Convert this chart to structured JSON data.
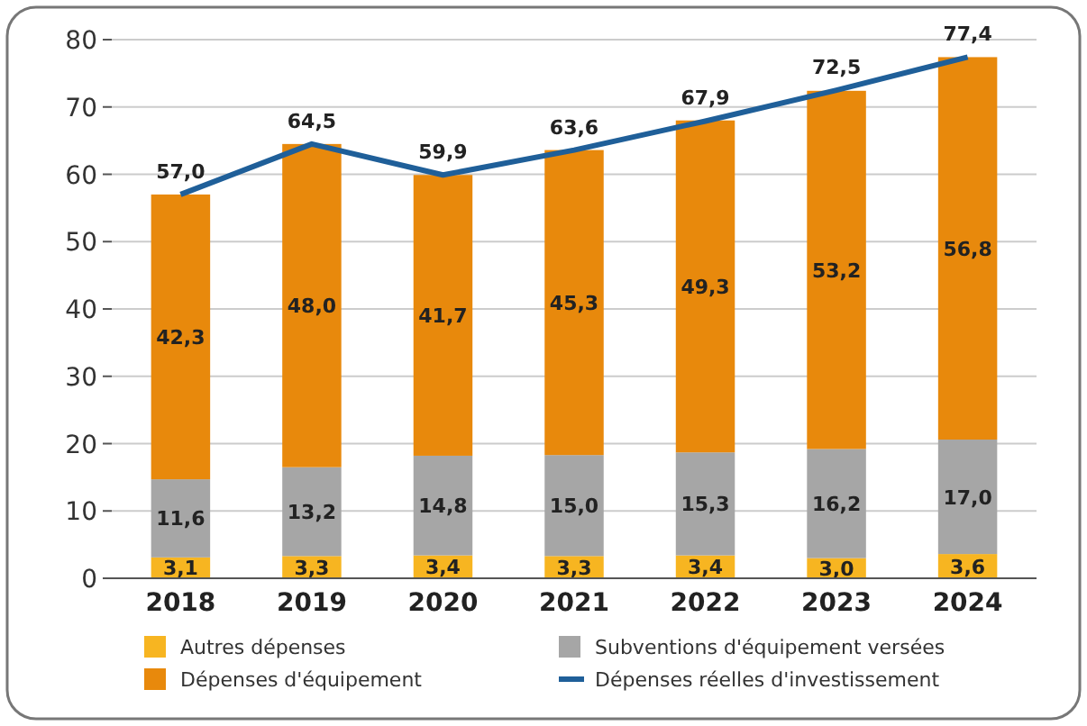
{
  "chart_data": {
    "type": "bar",
    "stacked": true,
    "categories": [
      "2018",
      "2019",
      "2020",
      "2021",
      "2022",
      "2023",
      "2024"
    ],
    "series": [
      {
        "name": "Autres dépenses",
        "color": "#f7b521",
        "values": [
          3.1,
          3.3,
          3.4,
          3.3,
          3.4,
          3.0,
          3.6
        ],
        "value_labels": [
          "3,1",
          "3,3",
          "3,4",
          "3,3",
          "3,4",
          "3,0",
          "3,6"
        ]
      },
      {
        "name": "Subventions d'équipement versées",
        "color": "#a6a6a6",
        "values": [
          11.6,
          13.2,
          14.8,
          15.0,
          15.3,
          16.2,
          17.0
        ],
        "value_labels": [
          "11,6",
          "13,2",
          "14,8",
          "15,0",
          "15,3",
          "16,2",
          "17,0"
        ]
      },
      {
        "name": "Dépenses d'équipement",
        "color": "#e8890c",
        "values": [
          42.3,
          48.0,
          41.7,
          45.3,
          49.3,
          53.2,
          56.8
        ],
        "value_labels": [
          "42,3",
          "48,0",
          "41,7",
          "45,3",
          "49,3",
          "53,2",
          "56,8"
        ]
      },
      {
        "name": "Dépenses réelles d'investissement",
        "type": "line",
        "color": "#1f5f99",
        "values": [
          57.0,
          64.5,
          59.9,
          63.6,
          67.9,
          72.5,
          77.4
        ],
        "value_labels": [
          "57,0",
          "64,5",
          "59,9",
          "63,6",
          "67,9",
          "72,5",
          "77,4"
        ]
      }
    ],
    "ylim": [
      0,
      80
    ],
    "yticks": [
      0,
      10,
      20,
      30,
      40,
      50,
      60,
      70,
      80
    ],
    "grid": "y",
    "legend": "bottom",
    "marker": "none"
  }
}
